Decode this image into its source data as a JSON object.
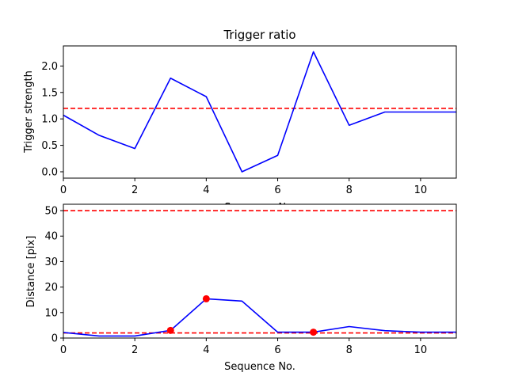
{
  "chart_data": [
    {
      "type": "line",
      "title": "Trigger ratio",
      "xlabel": "Sequence No.",
      "ylabel": "Trigger strength",
      "xlim": [
        0,
        11
      ],
      "ylim": [
        -0.12,
        2.38
      ],
      "xticks": [
        0,
        2,
        4,
        6,
        8,
        10
      ],
      "xtick_labels": [
        "0",
        "2",
        "4",
        "6",
        "8",
        "10"
      ],
      "yticks": [
        0.0,
        0.5,
        1.0,
        1.5,
        2.0
      ],
      "ytick_labels": [
        "0.0",
        "0.5",
        "1.0",
        "1.5",
        "2.0"
      ],
      "grid": false,
      "series": [
        {
          "color": "#0000ff",
          "style": "solid",
          "x": [
            0,
            1,
            2,
            3,
            4,
            5,
            6,
            7,
            8,
            9,
            10,
            11
          ],
          "y": [
            1.07,
            0.69,
            0.44,
            1.77,
            1.42,
            0.0,
            0.31,
            2.27,
            0.88,
            1.13,
            1.13,
            1.13
          ]
        }
      ],
      "hlines": [
        {
          "y": 1.2,
          "color": "#ff0000",
          "style": "dashed"
        }
      ],
      "markers": []
    },
    {
      "type": "line",
      "title": "",
      "xlabel": "Sequence No.",
      "ylabel": "Distance [pix]",
      "xlim": [
        0,
        11
      ],
      "ylim": [
        0,
        52.5
      ],
      "xticks": [
        0,
        2,
        4,
        6,
        8,
        10
      ],
      "xtick_labels": [
        "0",
        "2",
        "4",
        "6",
        "8",
        "10"
      ],
      "yticks": [
        0,
        10,
        20,
        30,
        40,
        50
      ],
      "ytick_labels": [
        "0",
        "10",
        "20",
        "30",
        "40",
        "50"
      ],
      "grid": false,
      "series": [
        {
          "color": "#0000ff",
          "style": "solid",
          "x": [
            0,
            1,
            2,
            3,
            4,
            5,
            6,
            7,
            8,
            9,
            10,
            11
          ],
          "y": [
            2.2,
            0.8,
            0.8,
            3.0,
            15.4,
            14.5,
            2.3,
            2.3,
            4.5,
            2.9,
            2.3,
            2.3
          ]
        }
      ],
      "hlines": [
        {
          "y": 50,
          "color": "#ff0000",
          "style": "dashed"
        },
        {
          "y": 2.0,
          "color": "#ff0000",
          "style": "dashed"
        }
      ],
      "markers": [
        {
          "x": 3,
          "y": 3.0,
          "color": "#ff0000"
        },
        {
          "x": 4,
          "y": 15.4,
          "color": "#ff0000"
        },
        {
          "x": 7,
          "y": 2.3,
          "color": "#ff0000"
        }
      ]
    }
  ]
}
